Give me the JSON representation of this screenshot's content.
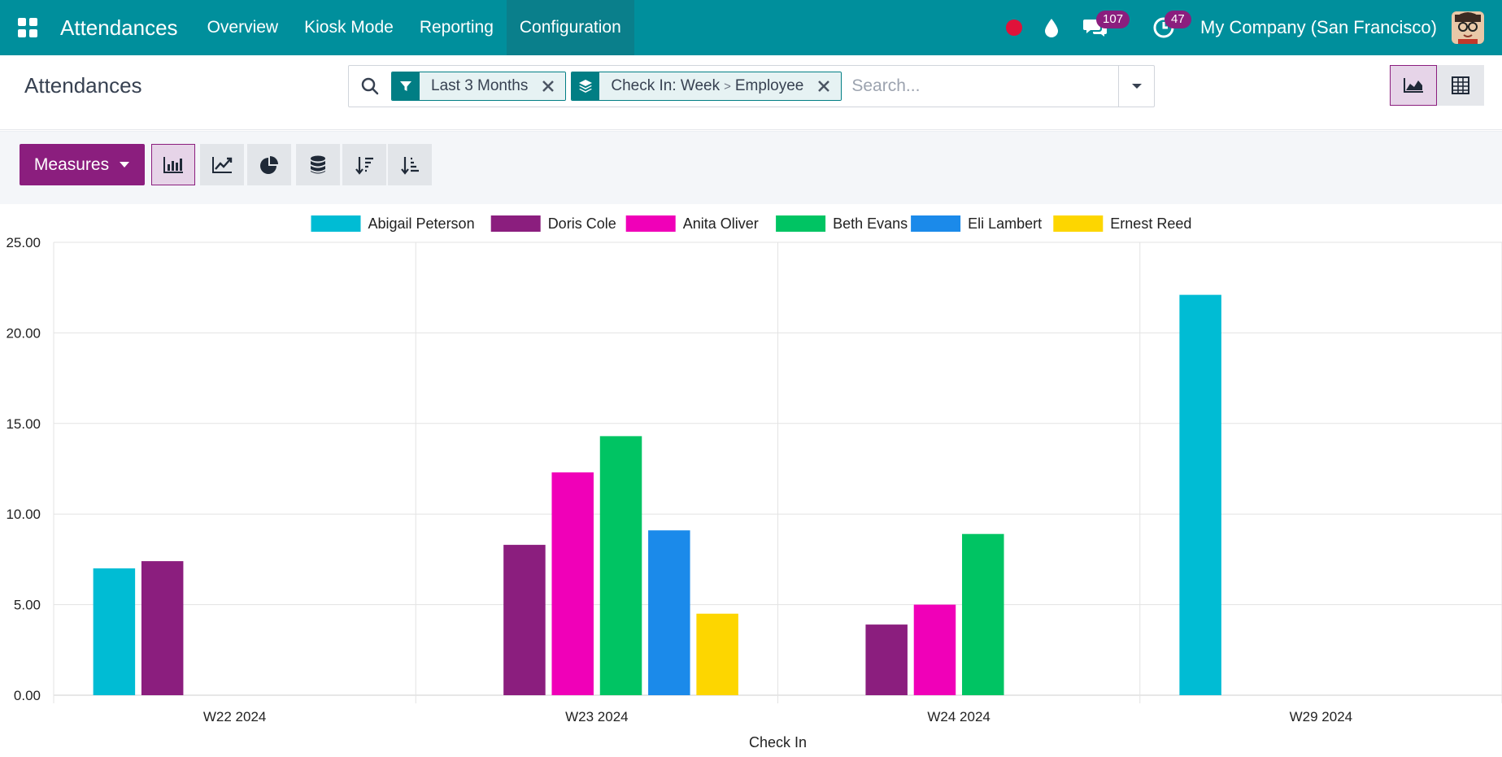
{
  "navbar": {
    "brand": "Attendances",
    "menu": [
      {
        "label": "Overview"
      },
      {
        "label": "Kiosk Mode"
      },
      {
        "label": "Reporting"
      },
      {
        "label": "Configuration"
      }
    ],
    "messages_count": "107",
    "activities_count": "47",
    "company": "My Company (San Francisco)"
  },
  "control": {
    "title": "Attendances",
    "facets": [
      {
        "label": "Last 3 Months"
      },
      {
        "part1": "Check In: Week",
        "separator": ">",
        "part2": "Employee"
      }
    ],
    "search_placeholder": "Search..."
  },
  "toolbar": {
    "measures_label": "Measures"
  },
  "colors": {
    "accent": "#008f9c",
    "primary": "#8b1e7e"
  },
  "chart_data": {
    "type": "bar",
    "categories": [
      "W22 2024",
      "W23 2024",
      "W24 2024",
      "W29 2024"
    ],
    "xlabel": "Check In",
    "ylabel": "",
    "ylim": [
      0,
      25
    ],
    "yticks": [
      "0.00",
      "5.00",
      "10.00",
      "15.00",
      "20.00",
      "25.00"
    ],
    "grid": true,
    "legend": "top",
    "series": [
      {
        "name": "Abigail Peterson",
        "color": "#00bcd4",
        "values": [
          7.0,
          0,
          0,
          22.1
        ]
      },
      {
        "name": "Doris Cole",
        "color": "#8b1e7e",
        "values": [
          7.4,
          8.3,
          3.9,
          0
        ]
      },
      {
        "name": "Anita Oliver",
        "color": "#f000b8",
        "values": [
          0,
          12.3,
          5.0,
          0
        ]
      },
      {
        "name": "Beth Evans",
        "color": "#00c463",
        "values": [
          0,
          14.3,
          8.9,
          0
        ]
      },
      {
        "name": "Eli Lambert",
        "color": "#1b8aea",
        "values": [
          0,
          9.1,
          0,
          0
        ]
      },
      {
        "name": "Ernest Reed",
        "color": "#fdd600",
        "values": [
          0,
          4.5,
          0,
          0
        ]
      }
    ]
  }
}
